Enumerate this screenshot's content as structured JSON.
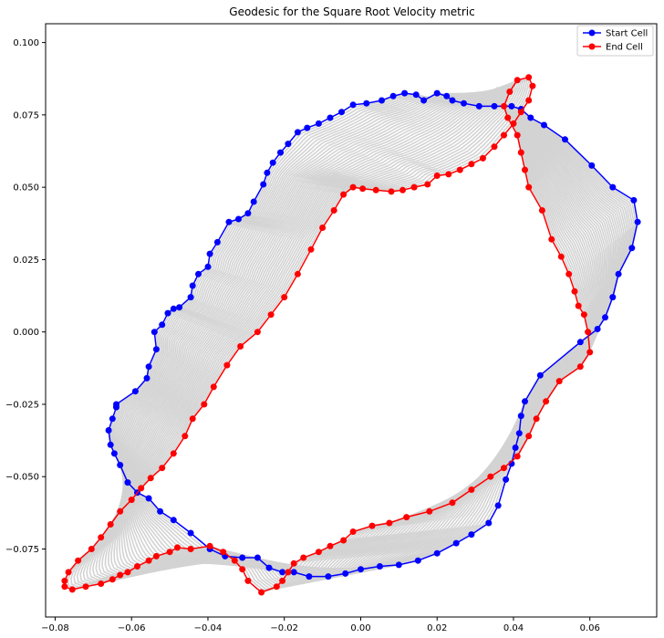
{
  "chart_data": {
    "type": "line",
    "title": "Geodesic for the Square Root Velocity metric",
    "xlabel": "",
    "ylabel": "",
    "xlim": [
      -0.0825,
      0.0775
    ],
    "ylim": [
      -0.0985,
      0.1065
    ],
    "xticks": [
      "−0.08",
      "−0.06",
      "−0.04",
      "−0.02",
      "0.00",
      "0.02",
      "0.04",
      "0.06"
    ],
    "xtick_values": [
      -0.08,
      -0.06,
      -0.04,
      -0.02,
      0.0,
      0.02,
      0.04,
      0.06
    ],
    "yticks": [
      "−0.075",
      "−0.050",
      "−0.025",
      "0.000",
      "0.025",
      "0.050",
      "0.075",
      "0.100"
    ],
    "ytick_values": [
      -0.075,
      -0.05,
      -0.025,
      0.0,
      0.025,
      0.05,
      0.075,
      0.1
    ],
    "grid": false,
    "legend": {
      "placement": "top-right"
    },
    "intermediate_color": "#d3d3d3",
    "series": [
      {
        "name": "Start Cell",
        "color": "#0000ff",
        "x": [
          -0.064,
          -0.059,
          -0.056,
          -0.0555,
          -0.0535,
          -0.054,
          -0.052,
          -0.0505,
          -0.049,
          -0.0475,
          -0.0445,
          -0.044,
          -0.0425,
          -0.04,
          -0.0395,
          -0.0375,
          -0.0345,
          -0.032,
          -0.0295,
          -0.028,
          -0.0255,
          -0.0245,
          -0.023,
          -0.021,
          -0.019,
          -0.0165,
          -0.014,
          -0.011,
          -0.008,
          -0.005,
          -0.002,
          0.0015,
          0.0055,
          0.0085,
          0.0115,
          0.0145,
          0.0165,
          0.02,
          0.0225,
          0.024,
          0.027,
          0.031,
          0.035,
          0.0395,
          0.042,
          0.0445,
          0.048,
          0.0535,
          0.0605,
          0.066,
          0.0715,
          0.0725,
          0.071,
          0.0675,
          0.066,
          0.064,
          0.062,
          0.0575,
          0.047,
          0.043,
          0.042,
          0.0415,
          0.0405,
          0.0395,
          0.038,
          0.036,
          0.0335,
          0.029,
          0.025,
          0.02,
          0.015,
          0.01,
          0.005,
          0.0,
          -0.004,
          -0.0085,
          -0.0135,
          -0.0175,
          -0.0205,
          -0.024,
          -0.027,
          -0.031,
          -0.0355,
          -0.0395,
          -0.0445,
          -0.049,
          -0.0525,
          -0.0555,
          -0.0585,
          -0.061,
          -0.063,
          -0.0645,
          -0.0655,
          -0.066,
          -0.065,
          -0.064
        ],
        "y": [
          -0.025,
          -0.0205,
          -0.016,
          -0.012,
          -0.006,
          0.0,
          0.0025,
          0.0065,
          0.008,
          0.0085,
          0.012,
          0.016,
          0.02,
          0.0225,
          0.027,
          0.031,
          0.038,
          0.039,
          0.041,
          0.045,
          0.051,
          0.055,
          0.0585,
          0.062,
          0.065,
          0.069,
          0.0705,
          0.072,
          0.074,
          0.076,
          0.0785,
          0.079,
          0.08,
          0.0815,
          0.0825,
          0.082,
          0.08,
          0.0825,
          0.0815,
          0.08,
          0.079,
          0.078,
          0.078,
          0.078,
          0.077,
          0.074,
          0.0715,
          0.0665,
          0.0575,
          0.05,
          0.0455,
          0.038,
          0.029,
          0.02,
          0.012,
          0.005,
          0.001,
          -0.0035,
          -0.015,
          -0.024,
          -0.029,
          -0.035,
          -0.04,
          -0.0455,
          -0.051,
          -0.06,
          -0.066,
          -0.07,
          -0.073,
          -0.0765,
          -0.079,
          -0.0805,
          -0.081,
          -0.082,
          -0.0835,
          -0.0845,
          -0.0845,
          -0.083,
          -0.083,
          -0.0815,
          -0.078,
          -0.078,
          -0.0775,
          -0.075,
          -0.0695,
          -0.065,
          -0.062,
          -0.0575,
          -0.0555,
          -0.052,
          -0.046,
          -0.042,
          -0.039,
          -0.034,
          -0.03,
          -0.026
        ]
      },
      {
        "name": "End Cell",
        "color": "#ff0000",
        "x": [
          -0.0775,
          -0.0765,
          -0.074,
          -0.0705,
          -0.068,
          -0.0655,
          -0.063,
          -0.06,
          -0.0575,
          -0.055,
          -0.052,
          -0.049,
          -0.046,
          -0.044,
          -0.041,
          -0.0385,
          -0.035,
          -0.0315,
          -0.027,
          -0.0235,
          -0.02,
          -0.0165,
          -0.013,
          -0.01,
          -0.007,
          -0.0045,
          -0.002,
          0.0005,
          0.004,
          0.008,
          0.011,
          0.014,
          0.0175,
          0.02,
          0.023,
          0.026,
          0.029,
          0.032,
          0.035,
          0.0375,
          0.04,
          0.042,
          0.044,
          0.045,
          0.044,
          0.041,
          0.039,
          0.0375,
          0.0385,
          0.041,
          0.042,
          0.043,
          0.044,
          0.0475,
          0.05,
          0.0525,
          0.0545,
          0.056,
          0.057,
          0.0585,
          0.0595,
          0.06,
          0.0575,
          0.052,
          0.0485,
          0.046,
          0.044,
          0.041,
          0.0375,
          0.034,
          0.029,
          0.024,
          0.018,
          0.012,
          0.0075,
          0.003,
          -0.002,
          -0.0045,
          -0.008,
          -0.011,
          -0.015,
          -0.0175,
          -0.019,
          -0.0205,
          -0.022,
          -0.026,
          -0.0295,
          -0.031,
          -0.033,
          -0.036,
          -0.0395,
          -0.0445,
          -0.048,
          -0.05,
          -0.0535,
          -0.0555,
          -0.0585,
          -0.061,
          -0.063,
          -0.065,
          -0.068,
          -0.072,
          -0.0755,
          -0.0775
        ],
        "y": [
          -0.086,
          -0.083,
          -0.079,
          -0.075,
          -0.071,
          -0.0665,
          -0.062,
          -0.058,
          -0.054,
          -0.0505,
          -0.047,
          -0.042,
          -0.036,
          -0.03,
          -0.025,
          -0.019,
          -0.0115,
          -0.005,
          0.0,
          0.006,
          0.012,
          0.02,
          0.0285,
          0.036,
          0.042,
          0.0475,
          0.05,
          0.0495,
          0.049,
          0.0485,
          0.049,
          0.05,
          0.051,
          0.054,
          0.0545,
          0.056,
          0.058,
          0.06,
          0.064,
          0.068,
          0.072,
          0.076,
          0.08,
          0.085,
          0.088,
          0.087,
          0.083,
          0.078,
          0.074,
          0.068,
          0.062,
          0.056,
          0.05,
          0.042,
          0.032,
          0.026,
          0.02,
          0.014,
          0.009,
          0.006,
          0.0,
          -0.007,
          -0.012,
          -0.017,
          -0.024,
          -0.03,
          -0.036,
          -0.043,
          -0.047,
          -0.05,
          -0.0545,
          -0.059,
          -0.062,
          -0.064,
          -0.066,
          -0.067,
          -0.069,
          -0.072,
          -0.074,
          -0.076,
          -0.078,
          -0.08,
          -0.083,
          -0.086,
          -0.088,
          -0.09,
          -0.086,
          -0.082,
          -0.079,
          -0.076,
          -0.074,
          -0.075,
          -0.0745,
          -0.076,
          -0.0775,
          -0.079,
          -0.081,
          -0.083,
          -0.084,
          -0.0855,
          -0.087,
          -0.088,
          -0.089,
          -0.088
        ]
      }
    ]
  }
}
